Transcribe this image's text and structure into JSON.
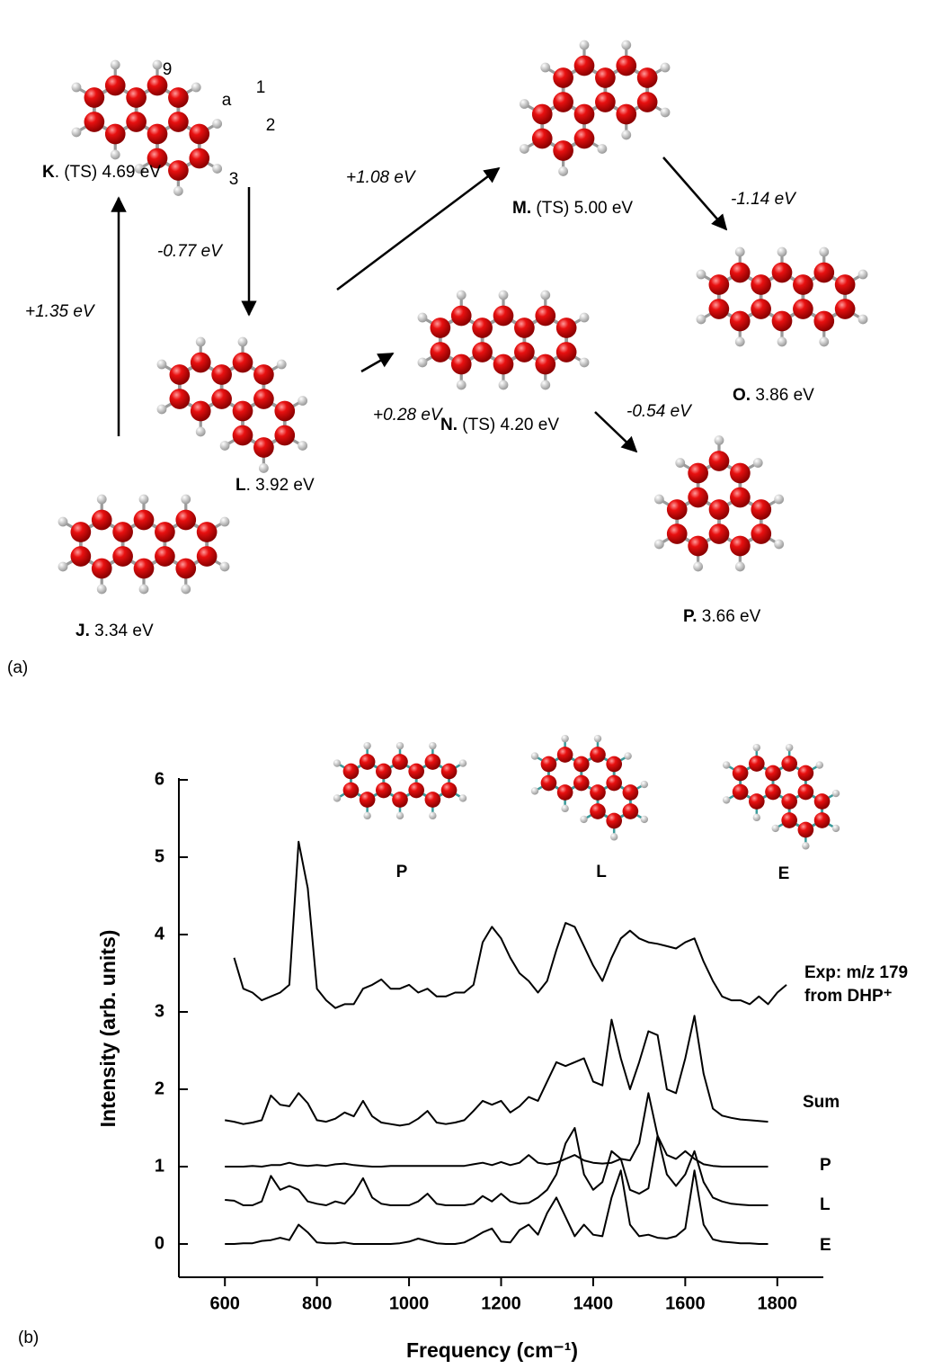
{
  "panel_a": {
    "label": "(a)",
    "nodes": [
      {
        "id": "K",
        "text": ". (TS) 4.69 eV"
      },
      {
        "id": "M.",
        "text": " (TS) 5.00 eV"
      },
      {
        "id": "O.",
        "text": "  3.86 eV"
      },
      {
        "id": "L",
        "text": ". 3.92 eV"
      },
      {
        "id": "N.",
        "text": " (TS) 4.20 eV"
      },
      {
        "id": "P.",
        "text": " 3.66 eV"
      },
      {
        "id": "J.",
        "text": " 3.34 eV"
      }
    ],
    "atom_labels": [
      "9",
      "a",
      "1",
      "2",
      "3"
    ],
    "arrows": [
      {
        "label": "+1.35 eV"
      },
      {
        "label": "-0.77 eV"
      },
      {
        "label": "+1.08 eV"
      },
      {
        "label": "+0.28 eV"
      },
      {
        "label": "-1.14 eV"
      },
      {
        "label": "-0.54 eV"
      }
    ]
  },
  "panel_b": {
    "label": "(b)"
  },
  "chart_data": {
    "type": "line",
    "xlabel": "Frequency (cm⁻¹)",
    "ylabel": "Intensity (arb. units)",
    "structure_labels": [
      "P",
      "L",
      "E"
    ],
    "xlim": [
      500,
      1900
    ],
    "ylim": [
      -0.43,
      6
    ],
    "xticks": [
      600,
      800,
      1000,
      1200,
      1400,
      1600,
      1800
    ],
    "yticks": [
      0,
      1,
      2,
      3,
      4,
      5,
      6
    ],
    "x": [
      600,
      620,
      640,
      660,
      680,
      700,
      720,
      740,
      760,
      780,
      800,
      820,
      840,
      860,
      880,
      900,
      920,
      940,
      960,
      980,
      1000,
      1020,
      1040,
      1060,
      1080,
      1100,
      1120,
      1140,
      1160,
      1180,
      1200,
      1220,
      1240,
      1260,
      1280,
      1300,
      1320,
      1340,
      1360,
      1380,
      1400,
      1420,
      1440,
      1460,
      1480,
      1500,
      1520,
      1540,
      1560,
      1580,
      1600,
      1620,
      1640,
      1660,
      1680,
      1700,
      1720,
      1740,
      1760,
      1780,
      1800,
      1820
    ],
    "series": [
      {
        "name": [
          "Exp: m/z 179",
          "from DHP⁺"
        ],
        "color": "#000000",
        "values": [
          null,
          3.7,
          3.3,
          3.25,
          3.15,
          3.2,
          3.25,
          3.35,
          5.2,
          4.6,
          3.3,
          3.15,
          3.05,
          3.1,
          3.1,
          3.3,
          3.35,
          3.42,
          3.3,
          3.3,
          3.35,
          3.25,
          3.3,
          3.2,
          3.2,
          3.25,
          3.25,
          3.35,
          3.9,
          4.1,
          3.95,
          3.7,
          3.5,
          3.4,
          3.25,
          3.4,
          3.8,
          4.15,
          4.1,
          3.85,
          3.6,
          3.4,
          3.7,
          3.95,
          4.05,
          3.95,
          3.9,
          3.88,
          3.85,
          3.82,
          3.9,
          3.95,
          3.65,
          3.4,
          3.2,
          3.15,
          3.15,
          3.1,
          3.2,
          3.1,
          3.25,
          3.35
        ]
      },
      {
        "name": "Sum",
        "color": "#000000",
        "values": [
          1.6,
          1.58,
          1.55,
          1.57,
          1.6,
          1.92,
          1.8,
          1.78,
          1.95,
          1.82,
          1.6,
          1.58,
          1.62,
          1.7,
          1.65,
          1.85,
          1.65,
          1.57,
          1.55,
          1.53,
          1.55,
          1.62,
          1.72,
          1.57,
          1.55,
          1.57,
          1.6,
          1.72,
          1.85,
          1.8,
          1.85,
          1.7,
          1.78,
          1.9,
          1.85,
          2.1,
          2.35,
          2.3,
          2.35,
          2.4,
          2.1,
          2.05,
          2.9,
          2.4,
          2.0,
          2.35,
          2.75,
          2.7,
          2.0,
          1.95,
          2.4,
          2.95,
          2.2,
          1.75,
          1.66,
          1.63,
          1.61,
          1.6,
          1.59,
          1.58,
          null,
          null
        ]
      },
      {
        "name": "P",
        "color": "#000000",
        "values": [
          1,
          1,
          1,
          1.01,
          1,
          1.02,
          1.02,
          1.05,
          1.02,
          1.01,
          1.02,
          1.01,
          1.03,
          1.04,
          1.02,
          1.01,
          1,
          1,
          1.01,
          1.01,
          1.01,
          1.01,
          1.01,
          1.01,
          1.01,
          1.01,
          1.01,
          1.03,
          1.05,
          1.02,
          1.06,
          1.02,
          1.05,
          1.15,
          1.05,
          1.03,
          1.05,
          1.1,
          1.15,
          1.08,
          1.05,
          1.04,
          1.05,
          1.1,
          1.08,
          1.3,
          1.95,
          1.4,
          1.15,
          1.1,
          1.2,
          1.1,
          1.03,
          1.01,
          1,
          1,
          1,
          1,
          1,
          1,
          null,
          null
        ]
      },
      {
        "name": "L",
        "color": "#000000",
        "values": [
          0.57,
          0.56,
          0.5,
          0.5,
          0.55,
          0.88,
          0.7,
          0.75,
          0.7,
          0.55,
          0.52,
          0.5,
          0.55,
          0.52,
          0.65,
          0.85,
          0.6,
          0.52,
          0.5,
          0.5,
          0.5,
          0.55,
          0.65,
          0.52,
          0.5,
          0.5,
          0.5,
          0.52,
          0.62,
          0.55,
          0.65,
          0.55,
          0.52,
          0.53,
          0.6,
          0.7,
          0.9,
          1.3,
          1.5,
          0.9,
          0.7,
          0.8,
          1.2,
          1.1,
          0.7,
          0.65,
          0.72,
          1.4,
          0.9,
          0.75,
          0.9,
          1.2,
          0.8,
          0.6,
          0.55,
          0.52,
          0.51,
          0.5,
          0.5,
          0.5,
          null,
          null
        ]
      },
      {
        "name": "E",
        "color": "#000000",
        "values": [
          0,
          0,
          0.01,
          0.01,
          0.04,
          0.05,
          0.08,
          0.05,
          0.25,
          0.15,
          0.02,
          0.01,
          0.01,
          0.02,
          0,
          0,
          0,
          0,
          0,
          0.01,
          0.03,
          0.07,
          0.04,
          0.01,
          0,
          0,
          0.02,
          0.08,
          0.15,
          0.2,
          0.03,
          0.02,
          0.18,
          0.25,
          0.12,
          0.4,
          0.6,
          0.35,
          0.1,
          0.25,
          0.12,
          0.1,
          0.6,
          0.95,
          0.25,
          0.1,
          0.12,
          0.08,
          0.07,
          0.1,
          0.2,
          0.95,
          0.25,
          0.06,
          0.03,
          0.02,
          0.01,
          0.01,
          0,
          0,
          null,
          null
        ]
      }
    ]
  }
}
